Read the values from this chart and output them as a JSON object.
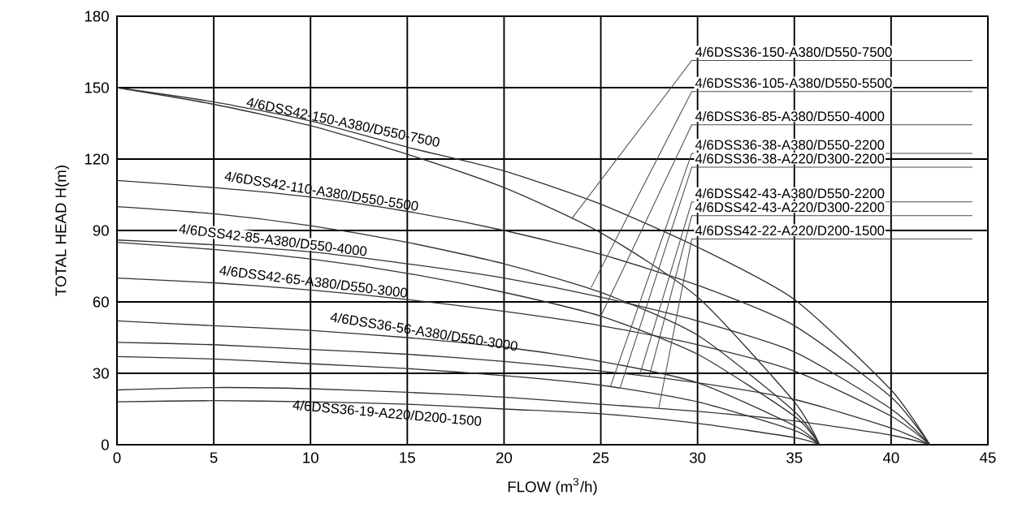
{
  "chart_data": {
    "type": "line",
    "xlabel": "FLOW (m$^{3}$/h)",
    "ylabel": "TOTAL HEAD  H(m)",
    "xlim": [
      0,
      45
    ],
    "xticks": [
      0,
      5,
      10,
      15,
      20,
      25,
      30,
      35,
      40,
      45
    ],
    "ylim": [
      0,
      180
    ],
    "yticks": [
      0,
      30,
      60,
      90,
      120,
      150,
      180
    ],
    "grid": true,
    "marker": "none",
    "series": [
      {
        "color": "#333333",
        "x": [
          0,
          5,
          10,
          15,
          20,
          25,
          30,
          35,
          40,
          42
        ],
        "values": [
          150,
          144,
          136,
          125,
          115,
          101,
          83,
          61,
          23,
          0
        ]
      },
      {
        "color": "#333333",
        "x": [
          0,
          5,
          10,
          15,
          20,
          25,
          30,
          35,
          40,
          42
        ],
        "values": [
          111,
          108,
          104,
          98,
          90,
          80,
          67,
          50,
          20,
          0
        ]
      },
      {
        "color": "#333333",
        "x": [
          0,
          5,
          10,
          15,
          20,
          25,
          30,
          35,
          40,
          42
        ],
        "values": [
          86,
          84,
          81,
          76,
          70,
          62,
          52,
          39,
          15,
          0
        ]
      },
      {
        "color": "#333333",
        "x": [
          0,
          5,
          10,
          15,
          20,
          25,
          30,
          35,
          40,
          42
        ],
        "values": [
          70,
          68,
          65,
          61,
          56,
          50,
          42,
          31,
          12,
          0
        ]
      },
      {
        "color": "#333333",
        "x": [
          0,
          5,
          10,
          15,
          20,
          25,
          30,
          35,
          40,
          42
        ],
        "values": [
          43,
          42,
          40,
          38,
          35,
          31,
          26,
          19,
          7,
          0
        ]
      },
      {
        "color": "#333333",
        "x": [
          0,
          5,
          10,
          15,
          20,
          25,
          30,
          35,
          40,
          42
        ],
        "values": [
          23,
          24,
          23.5,
          22,
          20,
          17,
          14,
          10,
          4,
          0
        ]
      },
      {
        "color": "#333333",
        "x": [
          0,
          5,
          10,
          15,
          20,
          25,
          30,
          35,
          36.3
        ],
        "values": [
          150,
          143,
          134,
          122,
          108,
          89,
          62,
          18,
          0
        ]
      },
      {
        "color": "#333333",
        "x": [
          0,
          5,
          10,
          15,
          20,
          25,
          30,
          35,
          36.3
        ],
        "values": [
          100,
          97,
          92,
          85,
          76,
          64,
          46,
          14,
          0
        ]
      },
      {
        "color": "#333333",
        "x": [
          0,
          5,
          10,
          15,
          20,
          25,
          30,
          35,
          36.3
        ],
        "values": [
          85,
          82,
          78,
          72,
          64,
          54,
          38,
          12,
          0
        ]
      },
      {
        "color": "#333333",
        "x": [
          0,
          5,
          10,
          15,
          20,
          25,
          30,
          35,
          36.3
        ],
        "values": [
          52,
          50,
          48,
          45,
          41,
          35,
          26,
          8,
          0
        ]
      },
      {
        "color": "#333333",
        "x": [
          0,
          5,
          10,
          15,
          20,
          25,
          30,
          35,
          36.3
        ],
        "values": [
          37,
          36,
          34,
          32,
          29,
          25,
          18,
          6,
          0
        ]
      },
      {
        "color": "#333333",
        "x": [
          0,
          5,
          10,
          15,
          20,
          25,
          30,
          35,
          36.3
        ],
        "values": [
          18,
          18.5,
          18,
          17,
          15,
          13,
          9,
          3,
          0
        ]
      }
    ],
    "annotations": [
      {
        "text": "4/6DSS42-150-A380/D550-7500",
        "x": 11.6,
        "y": 132
      },
      {
        "text": "4/6DSS42-110-A380/D550-5500",
        "x": 10.5,
        "y": 103
      },
      {
        "text": "4/6DSS42-85-A380/D550-4000",
        "x": 8,
        "y": 82.2
      },
      {
        "text": "4/6DSS42-65-A380/D550-3000",
        "x": 10.1,
        "y": 65
      },
      {
        "text": "4/6DSS36-56-A380/D550-3000",
        "x": 15.8,
        "y": 44
      },
      {
        "text": "4/6DSS36-19-A220/D200-1500",
        "x": 14,
        "y": 17
      },
      {
        "text": "4/6DSS36-150-A380/D550-7500",
        "x": 23.5,
        "y": 95
      },
      {
        "text": "4/6DSS36-105-A380/D550-5500",
        "x": 24.5,
        "y": 66
      },
      {
        "text": "4/6DSS36-85-A380/D550-4000",
        "x": 25,
        "y": 54
      },
      {
        "text": "4/6DSS36-38-A380/D550-2200",
        "x": 25.5,
        "y": 24.5
      },
      {
        "text": "4/6DSS36-38-A220/D300-2200",
        "x": 26,
        "y": 24
      },
      {
        "text": "4/6DSS42-43-A380/D550-2200",
        "x": 27,
        "y": 29
      },
      {
        "text": "4/6DSS42-43-A220/D300-2200",
        "x": 27.5,
        "y": 28.5
      },
      {
        "text": "4/6DSS42-22-A220/D200-1500",
        "x": 28,
        "y": 15.5
      }
    ]
  }
}
